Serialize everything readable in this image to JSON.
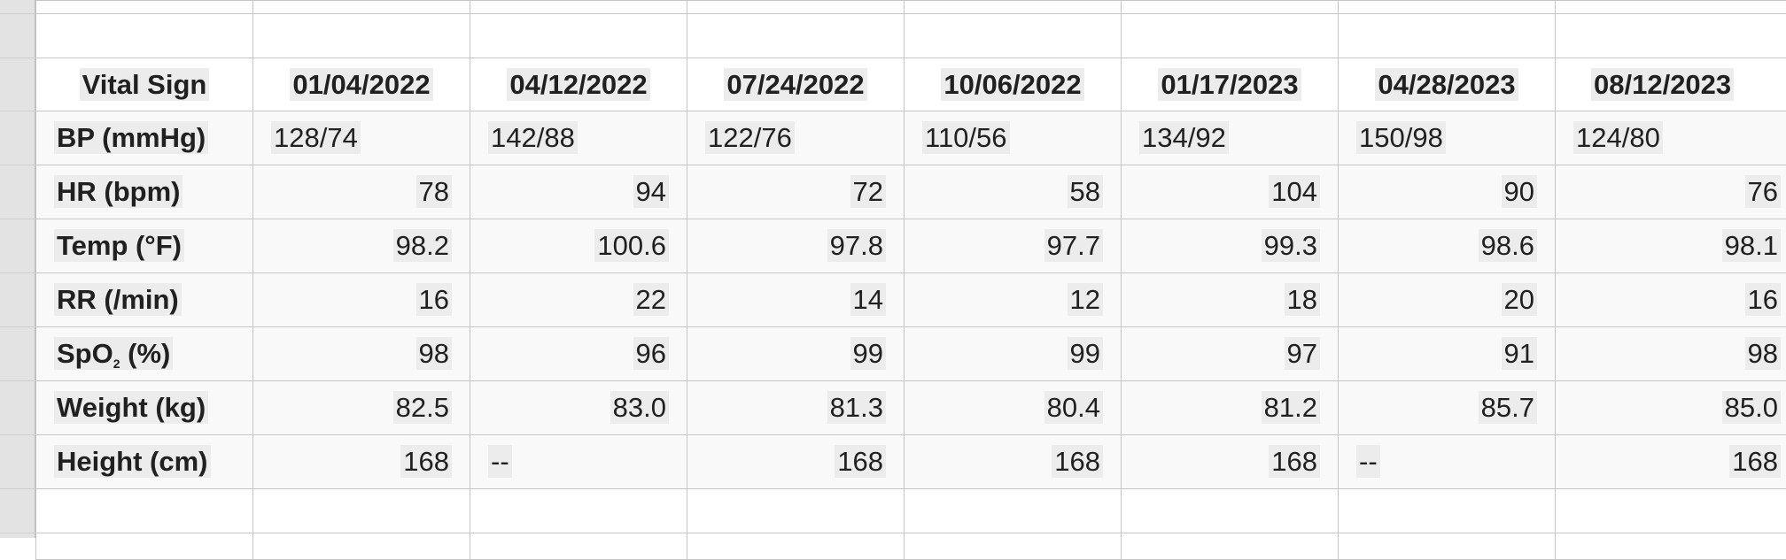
{
  "table": {
    "header_label": "Vital Sign",
    "dates": [
      "01/04/2022",
      "04/12/2022",
      "07/24/2022",
      "10/06/2022",
      "01/17/2023",
      "04/28/2023",
      "08/12/2023"
    ],
    "rows": [
      {
        "label": "BP (mmHg)",
        "align": "left",
        "values": [
          "128/74",
          "142/88",
          "122/76",
          "110/56",
          "134/92",
          "150/98",
          "124/80"
        ]
      },
      {
        "label": "HR (bpm)",
        "align": "right",
        "values": [
          "78",
          "94",
          "72",
          "58",
          "104",
          "90",
          "76"
        ]
      },
      {
        "label": "Temp (°F)",
        "align": "right",
        "values": [
          "98.2",
          "100.6",
          "97.8",
          "97.7",
          "99.3",
          "98.6",
          "98.1"
        ]
      },
      {
        "label": "RR (/min)",
        "align": "right",
        "values": [
          "16",
          "22",
          "14",
          "12",
          "18",
          "20",
          "16"
        ]
      },
      {
        "label_main": "SpO",
        "label_sub": "2",
        "label_rest": " (%)",
        "align": "right",
        "values": [
          "98",
          "96",
          "99",
          "99",
          "97",
          "91",
          "98"
        ]
      },
      {
        "label": "Weight (kg)",
        "align": "right",
        "values": [
          "82.5",
          "83.0",
          "81.3",
          "80.4",
          "81.2",
          "85.7",
          "85.0"
        ]
      },
      {
        "label": "Height (cm)",
        "align": "mixed",
        "values": [
          "168",
          "--",
          "168",
          "168",
          "168",
          "--",
          "168"
        ]
      }
    ]
  }
}
